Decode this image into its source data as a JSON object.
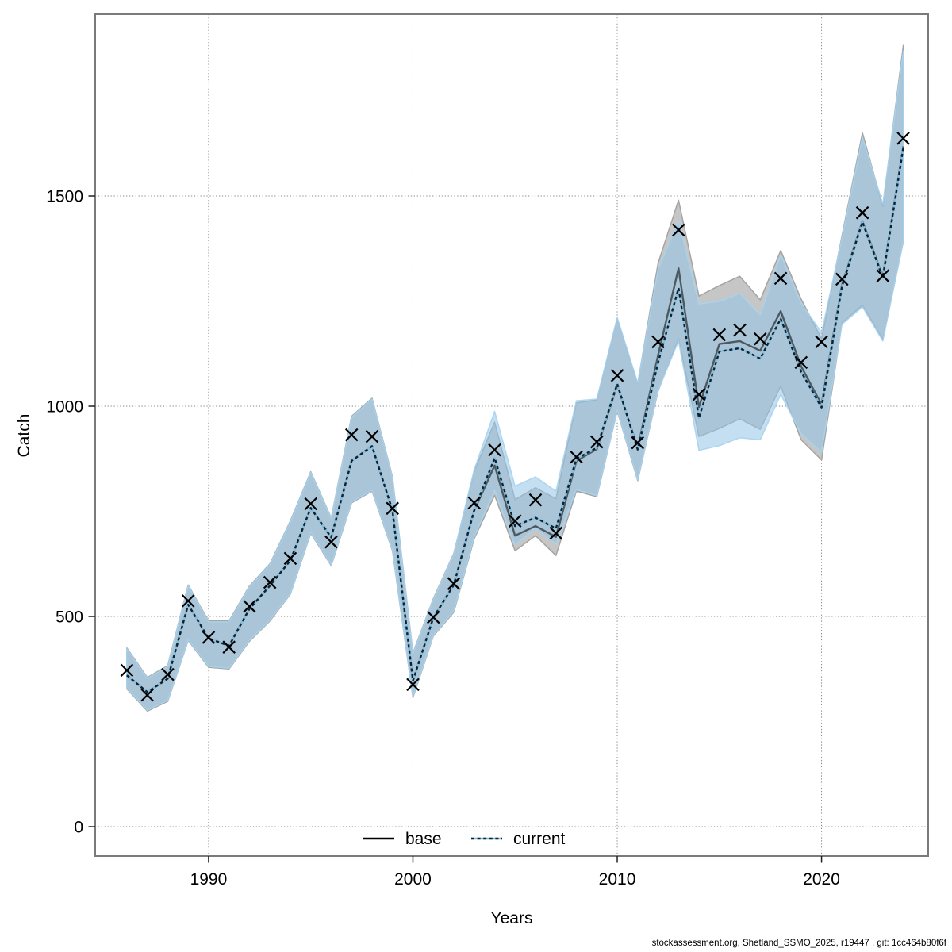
{
  "figure": {
    "footer": "stockassessment.org, Shetland_SSMO_2025, r19447 , git: 1cc464b80f6f",
    "background": "#ffffff"
  },
  "axes": {
    "x_label": "Years",
    "y_label": "Catch",
    "x_ticks": [
      1990,
      2000,
      2010,
      2020
    ],
    "x_tick_labels": [
      "1990",
      "2000",
      "2010",
      "2020"
    ],
    "y_ticks": [
      0,
      500,
      1000,
      1500
    ],
    "y_tick_labels": [
      "0",
      "500",
      "1000",
      "1500"
    ],
    "xlim": [
      1984.45,
      2025.22
    ],
    "ylim": [
      -69.8,
      1932.1
    ],
    "grid": "dotted"
  },
  "legend": {
    "items": [
      {
        "label": "base",
        "style": "solid-black-line"
      },
      {
        "label": "current",
        "style": "dotted-blue-line"
      }
    ]
  },
  "colors": {
    "grid": "#878787",
    "frame": "#7a7a7a",
    "tick": "#1f1f1f",
    "band_base_fill": "#c6c6c6",
    "band_base_edge": "#a4a4a4",
    "band_current_fill": "#92c5e5",
    "band_current_opacity": 0.55,
    "band_current_edge": "#a6d4ef",
    "base_line": "#000000",
    "base_line_opacity": 0.55,
    "current_underlay": "#85bedf",
    "current_dash": "#0e2230",
    "marker": "#000000"
  },
  "chart_data": {
    "type": "line",
    "title": "",
    "xlabel": "Years",
    "ylabel": "Catch",
    "x": [
      1986,
      1987,
      1988,
      1989,
      1990,
      1991,
      1992,
      1993,
      1994,
      1995,
      1996,
      1997,
      1998,
      1999,
      2000,
      2001,
      2002,
      2003,
      2004,
      2005,
      2006,
      2007,
      2008,
      2009,
      2010,
      2011,
      2012,
      2013,
      2014,
      2015,
      2016,
      2017,
      2018,
      2019,
      2020,
      2021,
      2022,
      2023,
      2024
    ],
    "series": [
      {
        "name": "observations",
        "style": "x-marker",
        "values": [
          372,
          313,
          362,
          537,
          450,
          427,
          524,
          581,
          638,
          768,
          677,
          932,
          928,
          757,
          338,
          498,
          578,
          770,
          896,
          727,
          777,
          698,
          879,
          915,
          1073,
          913,
          1153,
          1419,
          1028,
          1170,
          1181,
          1160,
          1304,
          1104,
          1153,
          1302,
          1460,
          1310,
          1637
        ]
      },
      {
        "name": "base",
        "style": "solid",
        "values": [
          360,
          320,
          352,
          528,
          448,
          430,
          518,
          573,
          633,
          758,
          688,
          870,
          905,
          752,
          347,
          497,
          575,
          752,
          859,
          692,
          715,
          689,
          870,
          898,
          1051,
          900,
          1121,
          1328,
          998,
          1148,
          1155,
          1132,
          1226,
          1095,
          1004,
          1288,
          1440,
          1308,
          1618
        ]
      },
      {
        "name": "current",
        "style": "dotted",
        "values": [
          360,
          320,
          352,
          528,
          448,
          430,
          518,
          573,
          633,
          758,
          688,
          870,
          905,
          752,
          347,
          497,
          575,
          752,
          877,
          715,
          735,
          709,
          875,
          901,
          1053,
          897,
          1104,
          1281,
          972,
          1130,
          1138,
          1113,
          1208,
          1082,
          997,
          1285,
          1438,
          1305,
          1615
        ]
      },
      {
        "name": "base_band",
        "style": "band",
        "lo": [
          328,
          275,
          298,
          443,
          379,
          375,
          441,
          489,
          553,
          698,
          621,
          770,
          798,
          656,
          307,
          453,
          510,
          685,
          788,
          656,
          692,
          645,
          798,
          785,
          989,
          823,
          1036,
          1160,
          928,
          947,
          970,
          945,
          1048,
          920,
          872,
          1198,
          1240,
          1158,
          1392
        ],
        "hi": [
          425,
          355,
          383,
          575,
          489,
          489,
          572,
          625,
          727,
          844,
          734,
          976,
          1019,
          832,
          413,
          542,
          650,
          845,
          962,
          778,
          806,
          780,
          1008,
          1015,
          1209,
          1053,
          1340,
          1490,
          1262,
          1287,
          1309,
          1253,
          1370,
          1255,
          1160,
          1405,
          1650,
          1475,
          1858
        ]
      },
      {
        "name": "current_band",
        "style": "band",
        "lo": [
          330,
          277,
          300,
          445,
          381,
          377,
          443,
          491,
          555,
          700,
          623,
          772,
          800,
          658,
          309,
          455,
          513,
          689,
          800,
          670,
          710,
          672,
          802,
          787,
          991,
          825,
          1038,
          1155,
          895,
          906,
          925,
          920,
          1028,
          935,
          891,
          1195,
          1236,
          1155,
          1394
        ],
        "hi": [
          423,
          353,
          381,
          573,
          487,
          487,
          570,
          623,
          725,
          842,
          732,
          974,
          1017,
          830,
          411,
          540,
          648,
          849,
          988,
          810,
          832,
          798,
          1013,
          1017,
          1211,
          1055,
          1325,
          1441,
          1243,
          1249,
          1268,
          1217,
          1359,
          1245,
          1175,
          1400,
          1640,
          1481,
          1845
        ]
      }
    ]
  }
}
